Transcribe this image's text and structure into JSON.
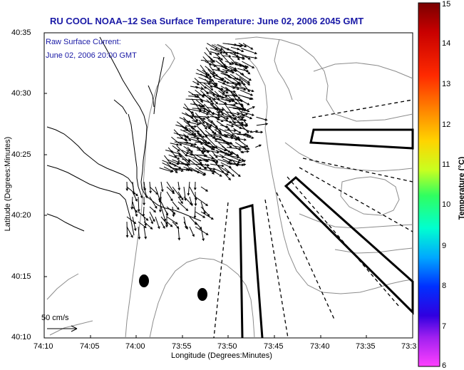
{
  "title": "RU COOL  NOAA–12  Sea Surface Temperature:  June 02, 2006 2045 GMT",
  "annotation": {
    "line1": "Raw Surface Current:",
    "line2": "June 02, 2006 20:00 GMT"
  },
  "yaxis": {
    "label": "Latitude (Degrees:Minutes)",
    "ticks": [
      "40:35",
      "40:30",
      "40:25",
      "40:20",
      "40:15",
      "40:10"
    ]
  },
  "xaxis": {
    "label": "Longitude (Degrees:Minutes)",
    "ticks": [
      "74:10",
      "74:05",
      "74:00",
      "73:55",
      "73:50",
      "73:45",
      "73:40",
      "73:35",
      "73:3"
    ]
  },
  "colorbar": {
    "label": "Temperature (°C)",
    "ticks": [
      "15",
      "14",
      "13",
      "12",
      "11",
      "10",
      "9",
      "8",
      "7",
      "6"
    ]
  },
  "scale_vector": {
    "label": "50 cm/s"
  },
  "colors": {
    "title": "#1a1aa6",
    "contour": "#8c8c8c",
    "coast": "#000000"
  }
}
